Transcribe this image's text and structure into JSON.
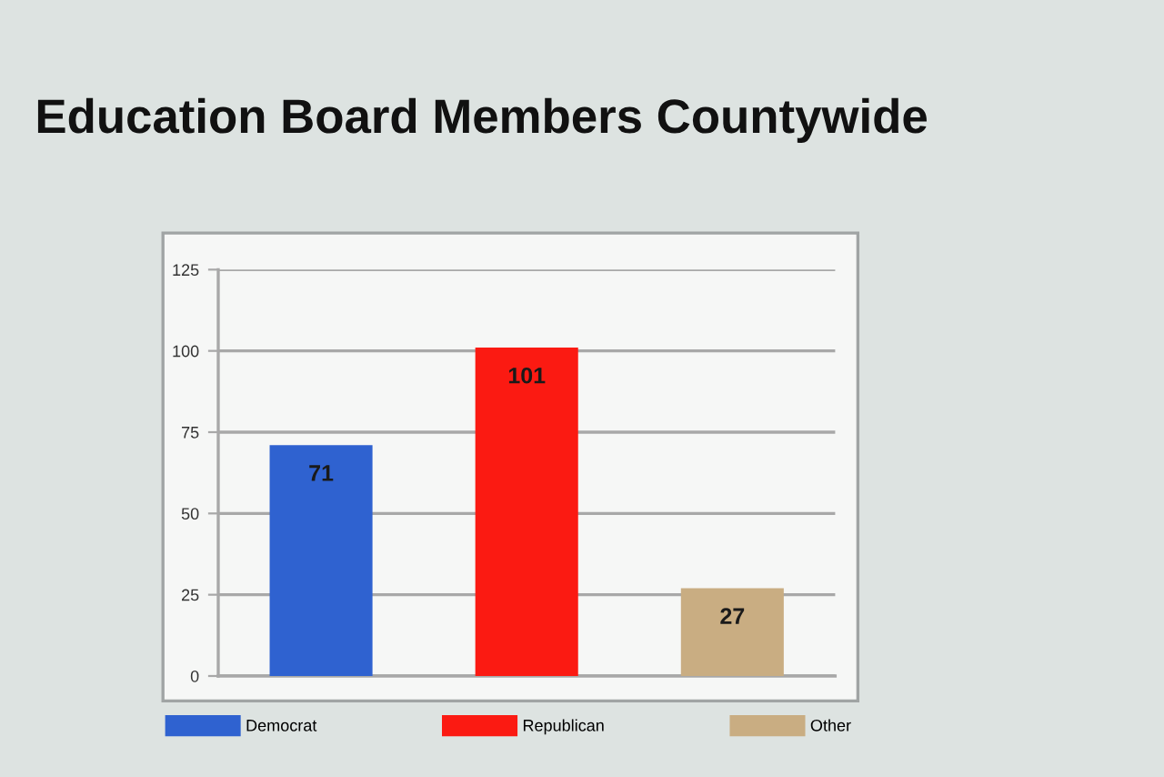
{
  "chart_data": {
    "type": "bar",
    "title": "Education Board Members Countywide",
    "categories": [
      null,
      null,
      null
    ],
    "series": [
      {
        "name": "Democrat",
        "color": "#2f62d0",
        "values": [
          71,
          null,
          null
        ]
      },
      {
        "name": "Republican",
        "color": "#fb1a12",
        "values": [
          null,
          101,
          null
        ]
      },
      {
        "name": "Other",
        "color": "#c9ad82",
        "values": [
          null,
          null,
          27
        ]
      }
    ],
    "ylim": [
      0,
      125
    ],
    "yticks": [
      0,
      25,
      50,
      75,
      100,
      125
    ],
    "grid": "y",
    "legend": "bottom",
    "data_labels": true
  }
}
